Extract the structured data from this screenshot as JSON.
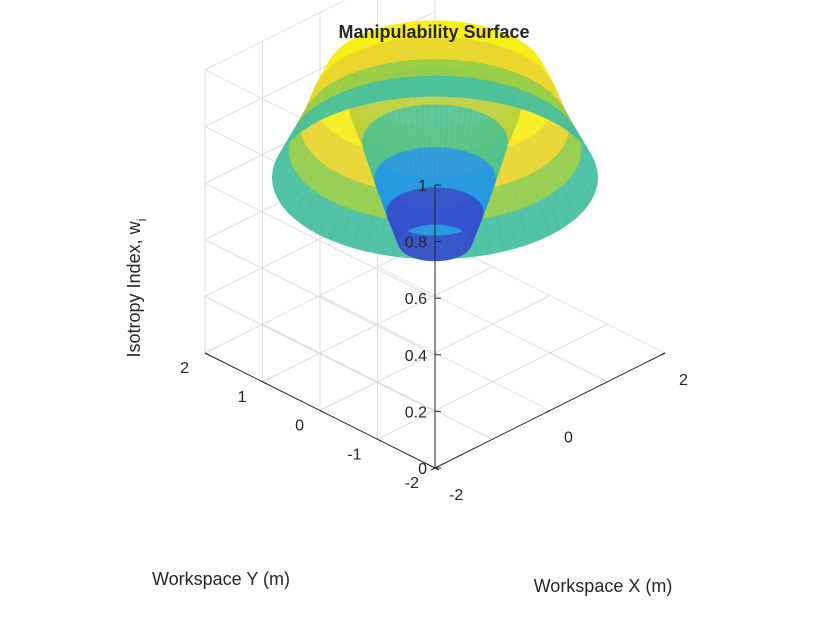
{
  "chart_data": {
    "type": "surface",
    "title": "Manipulability Surface",
    "xlabel": "Workspace X (m)",
    "ylabel": "Workspace Y (m)",
    "zlabel_main": "Isotropy Index, w",
    "zlabel_sub": "i",
    "xlim": [
      -2,
      2
    ],
    "ylim": [
      -2,
      2
    ],
    "zlim": [
      0,
      1
    ],
    "x_ticks": [
      {
        "v": -2,
        "label": "-2"
      },
      {
        "v": 0,
        "label": "0"
      },
      {
        "v": 2,
        "label": "2"
      }
    ],
    "y_ticks": [
      {
        "v": -2,
        "label": "-2"
      },
      {
        "v": -1,
        "label": "-1"
      },
      {
        "v": 0,
        "label": "0"
      },
      {
        "v": 1,
        "label": "1"
      },
      {
        "v": 2,
        "label": "2"
      }
    ],
    "z_ticks": [
      {
        "v": 0,
        "label": "0"
      },
      {
        "v": 0.2,
        "label": "0.2"
      },
      {
        "v": 0.4,
        "label": "0.4"
      },
      {
        "v": 0.6,
        "label": "0.6"
      },
      {
        "v": 0.8,
        "label": "0.8"
      },
      {
        "v": 1,
        "label": "1"
      }
    ],
    "grid": true,
    "colormap": "parula",
    "surface_profile": [
      {
        "r": 0.45,
        "z": 0.39
      },
      {
        "r": 0.6,
        "z": 0.5
      },
      {
        "r": 0.75,
        "z": 0.62
      },
      {
        "r": 0.9,
        "z": 0.75
      },
      {
        "r": 1.05,
        "z": 0.86
      },
      {
        "r": 1.2,
        "z": 0.97
      },
      {
        "r": 1.35,
        "z": 0.98
      },
      {
        "r": 1.5,
        "z": 0.9
      },
      {
        "r": 1.65,
        "z": 0.8
      },
      {
        "r": 1.8,
        "z": 0.72
      },
      {
        "r": 2.0,
        "z": 0.62
      }
    ],
    "colors": {
      "axis": "#262626",
      "grid": "#dcdcdc",
      "colormap_stops": [
        "#3e26a8",
        "#2c7ef7",
        "#1fb9cf",
        "#82ca4f",
        "#f3d62b",
        "#f9fb0e"
      ]
    }
  }
}
